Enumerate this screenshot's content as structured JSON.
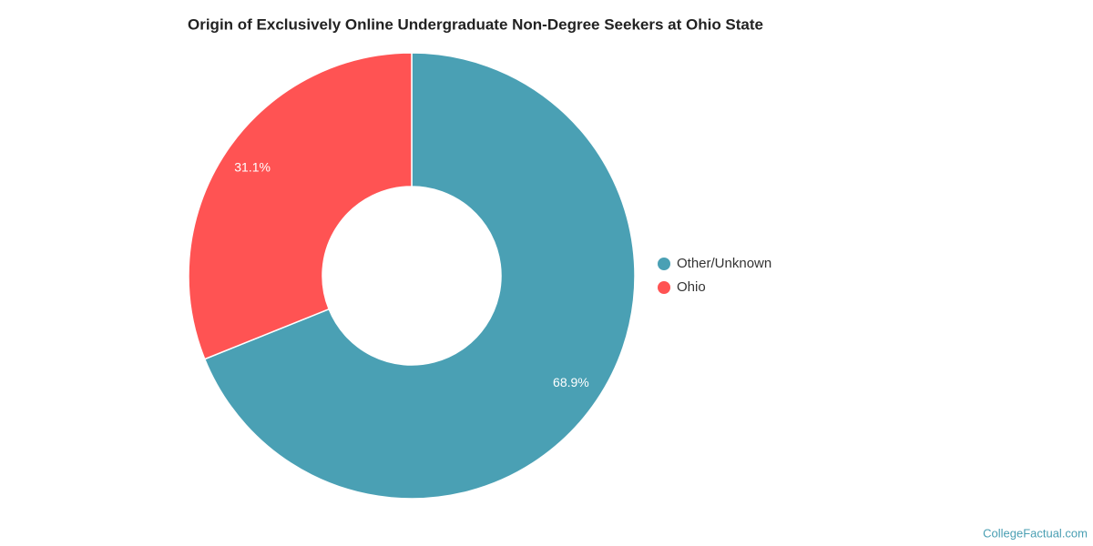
{
  "chart_data": {
    "type": "pie",
    "title": "Origin of Exclusively Online Undergraduate Non-Degree Seekers at Ohio State",
    "categories": [
      "Other/Unknown",
      "Ohio"
    ],
    "values": [
      68.9,
      31.1
    ],
    "value_labels": [
      "68.9%",
      "31.1%"
    ],
    "colors": [
      "#4aa0b4",
      "#ff5353"
    ],
    "donut": true,
    "legend": "right",
    "credit": "CollegeFactual.com"
  }
}
